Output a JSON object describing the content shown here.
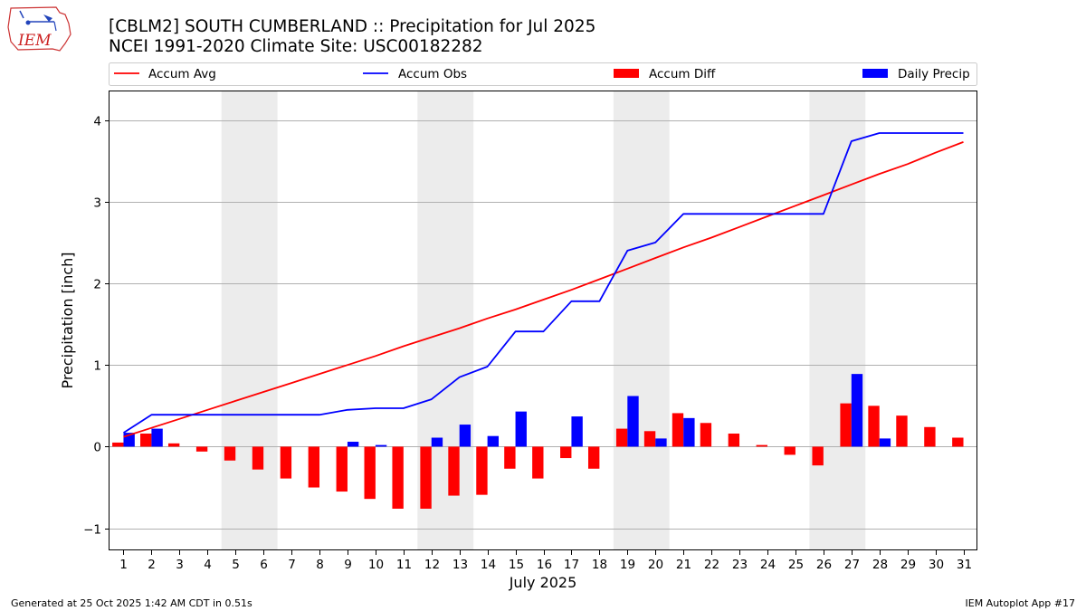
{
  "header": {
    "title_line1": "[CBLM2] SOUTH CUMBERLAND :: Precipitation for Jul 2025",
    "title_line2": "NCEI 1991-2020 Climate Site: USC00182282",
    "logo_text": "IEM"
  },
  "footer": {
    "left": "Generated at 25 Oct 2025 1:42 AM CDT in 0.51s",
    "right": "IEM Autoplot App #17"
  },
  "chart_data": {
    "type": "bar",
    "title": "[CBLM2] SOUTH CUMBERLAND :: Precipitation for Jul 2025",
    "subtitle": "NCEI 1991-2020 Climate Site: USC00182282",
    "xlabel": "July 2025",
    "ylabel": "Precipitation [inch]",
    "xlim": [
      0.5,
      31.5
    ],
    "ylim": [
      -1.27,
      4.35
    ],
    "yticks": [
      -1,
      0,
      1,
      2,
      3,
      4
    ],
    "ytick_labels": [
      "−1",
      "0",
      "1",
      "2",
      "3",
      "4"
    ],
    "categories": [
      "1",
      "2",
      "3",
      "4",
      "5",
      "6",
      "7",
      "8",
      "9",
      "10",
      "11",
      "12",
      "13",
      "14",
      "15",
      "16",
      "17",
      "18",
      "19",
      "20",
      "21",
      "22",
      "23",
      "24",
      "25",
      "26",
      "27",
      "28",
      "29",
      "30",
      "31"
    ],
    "weekend_bands": [
      [
        4.5,
        6.5
      ],
      [
        11.5,
        13.5
      ],
      [
        18.5,
        20.5
      ],
      [
        25.5,
        27.5
      ]
    ],
    "grid": "y",
    "legend": {
      "placement": "top",
      "entries": [
        {
          "label": "Accum Avg",
          "kind": "line",
          "color": "#ff0000"
        },
        {
          "label": "Accum Obs",
          "kind": "line",
          "color": "#0000ff"
        },
        {
          "label": "Accum Diff",
          "kind": "bar",
          "color": "#ff0000"
        },
        {
          "label": "Daily Precip",
          "kind": "bar",
          "color": "#0000ff"
        }
      ]
    },
    "series": [
      {
        "name": "Accum Avg",
        "type": "line",
        "color": "#ff0000",
        "values": [
          0.12,
          0.23,
          0.34,
          0.45,
          0.56,
          0.67,
          0.78,
          0.89,
          1.0,
          1.11,
          1.23,
          1.34,
          1.45,
          1.57,
          1.68,
          1.8,
          1.92,
          2.05,
          2.18,
          2.31,
          2.44,
          2.56,
          2.69,
          2.82,
          2.95,
          3.08,
          3.21,
          3.34,
          3.46,
          3.6,
          3.73
        ]
      },
      {
        "name": "Accum Obs",
        "type": "line",
        "color": "#0000ff",
        "values": [
          0.17,
          0.39,
          0.39,
          0.39,
          0.39,
          0.39,
          0.39,
          0.39,
          0.45,
          0.47,
          0.47,
          0.58,
          0.85,
          0.98,
          1.41,
          1.41,
          1.78,
          1.78,
          2.4,
          2.5,
          2.85,
          2.85,
          2.85,
          2.85,
          2.85,
          2.85,
          3.74,
          3.84,
          3.84,
          3.84,
          3.84
        ]
      },
      {
        "name": "Accum Diff",
        "type": "bar",
        "color": "#ff0000",
        "values": [
          0.05,
          0.16,
          0.04,
          -0.06,
          -0.17,
          -0.28,
          -0.39,
          -0.5,
          -0.55,
          -0.64,
          -0.76,
          -0.76,
          -0.6,
          -0.59,
          -0.27,
          -0.39,
          -0.14,
          -0.27,
          0.22,
          0.19,
          0.41,
          0.29,
          0.16,
          0.02,
          -0.1,
          -0.23,
          0.53,
          0.5,
          0.38,
          0.24,
          0.11
        ]
      },
      {
        "name": "Daily Precip",
        "type": "bar",
        "color": "#0000ff",
        "values": [
          0.17,
          0.22,
          0,
          0,
          0,
          0,
          0,
          0,
          0.06,
          0.02,
          0,
          0.11,
          0.27,
          0.13,
          0.43,
          0,
          0.37,
          0,
          0.62,
          0.1,
          0.35,
          0,
          0,
          0,
          0,
          0,
          0.89,
          0.1,
          0,
          0,
          0
        ]
      }
    ]
  }
}
